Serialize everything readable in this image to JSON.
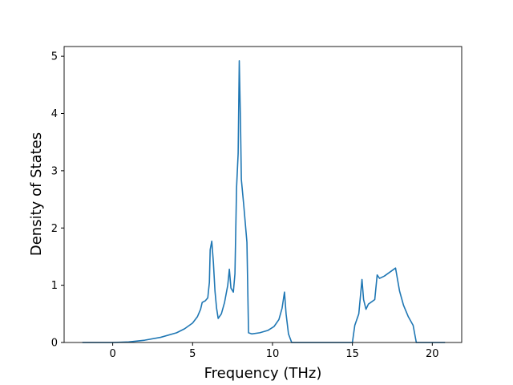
{
  "chart_data": {
    "type": "line",
    "x_label": "Frequency (THz)",
    "y_label": "Density of States",
    "xlim": [
      -3.04,
      21.84
    ],
    "ylim": [
      0,
      5.17
    ],
    "xticks": [
      0,
      5,
      10,
      15,
      20
    ],
    "yticks": [
      0,
      1,
      2,
      3,
      4,
      5
    ],
    "color": "#1f77b4",
    "x": [
      -1.9,
      0,
      1,
      2,
      3,
      4,
      4.5,
      5,
      5.3,
      5.5,
      5.6,
      5.8,
      5.95,
      6.05,
      6.1,
      6.2,
      6.3,
      6.4,
      6.5,
      6.6,
      6.8,
      7.0,
      7.2,
      7.3,
      7.4,
      7.55,
      7.65,
      7.75,
      7.85,
      7.92,
      8.0,
      8.05,
      8.2,
      8.4,
      8.5,
      8.7,
      9.2,
      9.7,
      10.1,
      10.4,
      10.6,
      10.75,
      10.85,
      11.0,
      11.2,
      15,
      15.15,
      15.4,
      15.6,
      15.7,
      15.85,
      16.0,
      16.4,
      16.55,
      16.7,
      17.0,
      17.7,
      17.95,
      18.2,
      18.5,
      18.8,
      19.0,
      20.8
    ],
    "values": [
      0,
      0,
      0.01,
      0.04,
      0.09,
      0.17,
      0.24,
      0.34,
      0.45,
      0.58,
      0.7,
      0.73,
      0.78,
      1.05,
      1.62,
      1.77,
      1.4,
      0.9,
      0.6,
      0.42,
      0.5,
      0.7,
      1.0,
      1.28,
      0.95,
      0.88,
      1.2,
      2.7,
      3.3,
      4.92,
      3.8,
      2.85,
      2.4,
      1.75,
      0.17,
      0.15,
      0.17,
      0.21,
      0.28,
      0.4,
      0.6,
      0.88,
      0.5,
      0.15,
      0,
      0,
      0.3,
      0.5,
      1.1,
      0.75,
      0.58,
      0.67,
      0.75,
      1.18,
      1.12,
      1.16,
      1.3,
      0.9,
      0.65,
      0.45,
      0.3,
      0,
      0
    ]
  }
}
